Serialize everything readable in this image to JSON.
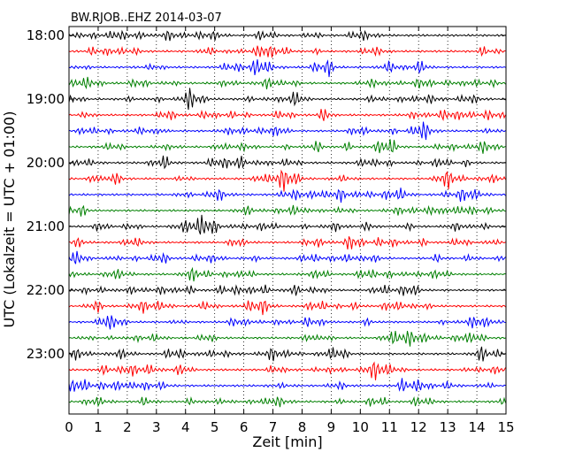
{
  "chart_data": {
    "type": "line",
    "title": "BW.RJOB..EHZ 2014-03-07",
    "xlabel": "Zeit  [min]",
    "ylabel": "UTC (Lokalzeit = UTC + 01:00)",
    "xlim": [
      0,
      15
    ],
    "x_ticks": [
      "0",
      "1",
      "2",
      "3",
      "4",
      "5",
      "6",
      "7",
      "8",
      "9",
      "10",
      "11",
      "12",
      "13",
      "14",
      "15"
    ],
    "y_ticks": [
      "18:00",
      "19:00",
      "20:00",
      "21:00",
      "22:00",
      "23:00"
    ],
    "grid": "vertical dotted",
    "trace_colors": [
      "#000000",
      "#ff0000",
      "#0000ff",
      "#008000"
    ],
    "traces": [
      {
        "start": "18:00",
        "color": "#000000"
      },
      {
        "start": "18:15",
        "color": "#ff0000"
      },
      {
        "start": "18:30",
        "color": "#0000ff"
      },
      {
        "start": "18:45",
        "color": "#008000"
      },
      {
        "start": "19:00",
        "color": "#000000"
      },
      {
        "start": "19:15",
        "color": "#ff0000"
      },
      {
        "start": "19:30",
        "color": "#0000ff"
      },
      {
        "start": "19:45",
        "color": "#008000"
      },
      {
        "start": "20:00",
        "color": "#000000"
      },
      {
        "start": "20:15",
        "color": "#ff0000"
      },
      {
        "start": "20:30",
        "color": "#0000ff"
      },
      {
        "start": "20:45",
        "color": "#008000"
      },
      {
        "start": "21:00",
        "color": "#000000"
      },
      {
        "start": "21:15",
        "color": "#ff0000"
      },
      {
        "start": "21:30",
        "color": "#0000ff"
      },
      {
        "start": "21:45",
        "color": "#008000"
      },
      {
        "start": "22:00",
        "color": "#000000"
      },
      {
        "start": "22:15",
        "color": "#ff0000"
      },
      {
        "start": "22:30",
        "color": "#0000ff"
      },
      {
        "start": "22:45",
        "color": "#008000"
      },
      {
        "start": "23:00",
        "color": "#000000"
      },
      {
        "start": "23:15",
        "color": "#ff0000"
      },
      {
        "start": "23:30",
        "color": "#0000ff"
      },
      {
        "start": "23:45",
        "color": "#008000"
      }
    ]
  }
}
